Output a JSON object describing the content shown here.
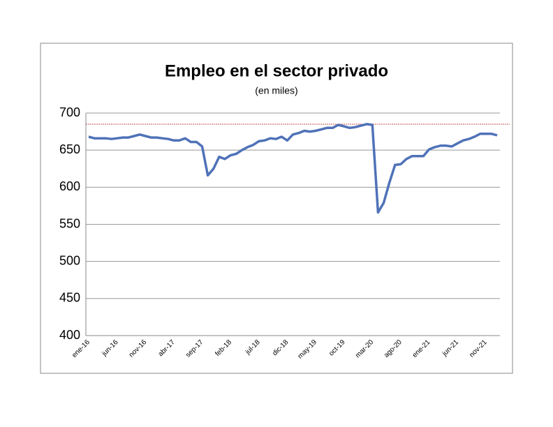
{
  "chart_data": {
    "type": "line",
    "title": "Empleo en el sector privado",
    "subtitle": "(en miles)",
    "categories": [
      "ene-16",
      null,
      null,
      null,
      null,
      "jun-16",
      null,
      null,
      null,
      null,
      "nov-16",
      null,
      null,
      null,
      null,
      "abr-17",
      null,
      null,
      null,
      null,
      "sep-17",
      null,
      null,
      null,
      null,
      "feb-18",
      null,
      null,
      null,
      null,
      "jul-18",
      null,
      null,
      null,
      null,
      "dic-18",
      null,
      null,
      null,
      null,
      "may-19",
      null,
      null,
      null,
      null,
      "oct-19",
      null,
      null,
      null,
      null,
      "mar-20",
      null,
      null,
      null,
      null,
      "ago-20",
      null,
      null,
      null,
      null,
      "ene-21",
      null,
      null,
      null,
      null,
      "jun-21",
      null,
      null,
      null,
      null,
      "nov-21",
      null,
      null
    ],
    "series": [
      {
        "name": "Empleo",
        "color": "#4f72b8",
        "values": [
          668,
          666,
          666,
          666,
          665,
          666,
          667,
          667,
          669,
          671,
          669,
          667,
          667,
          666,
          665,
          663,
          663,
          666,
          661,
          661,
          655,
          616,
          625,
          641,
          638,
          643,
          645,
          650,
          654,
          657,
          662,
          663,
          666,
          665,
          668,
          663,
          671,
          673,
          676,
          675,
          676,
          678,
          680,
          680,
          684,
          682,
          680,
          681,
          683,
          685,
          684,
          566,
          579,
          606,
          630,
          631,
          638,
          642,
          642,
          642,
          651,
          654,
          656,
          656,
          655,
          659,
          663,
          665,
          668,
          672,
          672,
          672,
          670
        ]
      }
    ],
    "reference_line": {
      "value": 685,
      "color": "#c0504d"
    },
    "ylim": [
      400,
      700
    ],
    "yticks": [
      400,
      450,
      500,
      550,
      600,
      650,
      700
    ],
    "grid": true
  }
}
